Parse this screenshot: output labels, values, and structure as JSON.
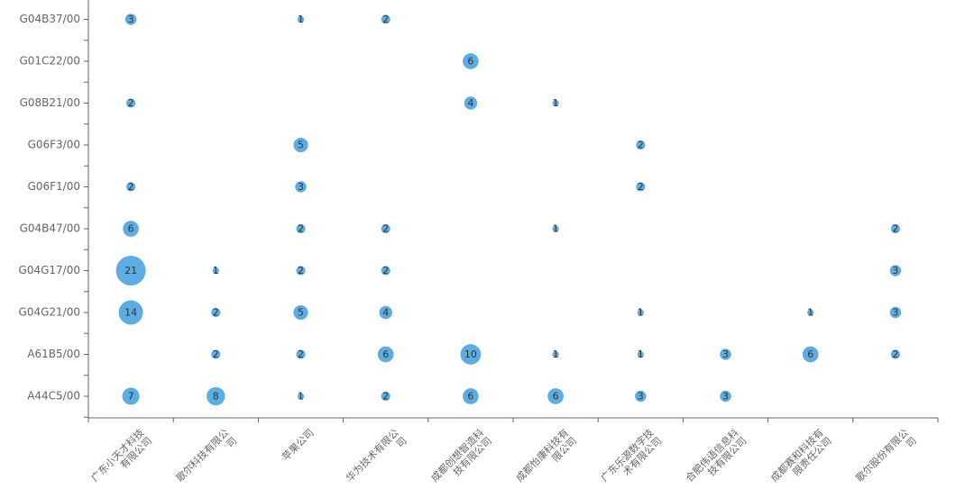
{
  "chart_data": {
    "type": "scatter",
    "title": "",
    "xlabel": "",
    "ylabel": "",
    "grid": false,
    "legend": "none",
    "x_categories": [
      "广东小天才科技有限公司",
      "歌尔科技有限公司",
      "苹果公司",
      "华为技术有限公司",
      "成都创想智造科技有限公司",
      "成都怡康科技有限公司",
      "广东乐源数字技术有限公司",
      "合肥伟语信息科技有限公司",
      "成都赛和科技有限责任公司",
      "歌尔股份有限公司"
    ],
    "x_tick_lines": [
      [
        "广东小天才科技",
        "有限公司"
      ],
      [
        "歌尔科技有限公",
        "司"
      ],
      [
        "苹果公司"
      ],
      [
        "华为技术有限公",
        "司"
      ],
      [
        "成都创想智造科",
        "技有限公司"
      ],
      [
        "成都怡康科技有",
        "限公司"
      ],
      [
        "广东乐源数字技",
        "术有限公司"
      ],
      [
        "合肥伟语信息科",
        "技有限公司"
      ],
      [
        "成都赛和科技有",
        "限责任公司"
      ],
      [
        "歌尔股份有限公",
        "司"
      ]
    ],
    "y_categories": [
      "A44C5/00",
      "A61B5/00",
      "G04G21/00",
      "G04G17/00",
      "G04B47/00",
      "G06F1/00",
      "G06F3/00",
      "G08B21/00",
      "G01C22/00",
      "G04B37/00"
    ],
    "points": [
      {
        "x": "广东小天才科技有限公司",
        "y": "G04B37/00",
        "value": 3
      },
      {
        "x": "苹果公司",
        "y": "G04B37/00",
        "value": 1
      },
      {
        "x": "华为技术有限公司",
        "y": "G04B37/00",
        "value": 2
      },
      {
        "x": "成都创想智造科技有限公司",
        "y": "G01C22/00",
        "value": 6
      },
      {
        "x": "广东小天才科技有限公司",
        "y": "G08B21/00",
        "value": 2
      },
      {
        "x": "成都创想智造科技有限公司",
        "y": "G08B21/00",
        "value": 4
      },
      {
        "x": "成都怡康科技有限公司",
        "y": "G08B21/00",
        "value": 1
      },
      {
        "x": "苹果公司",
        "y": "G06F3/00",
        "value": 5
      },
      {
        "x": "广东乐源数字技术有限公司",
        "y": "G06F3/00",
        "value": 2
      },
      {
        "x": "广东小天才科技有限公司",
        "y": "G06F1/00",
        "value": 2
      },
      {
        "x": "苹果公司",
        "y": "G06F1/00",
        "value": 3
      },
      {
        "x": "广东乐源数字技术有限公司",
        "y": "G06F1/00",
        "value": 2
      },
      {
        "x": "广东小天才科技有限公司",
        "y": "G04B47/00",
        "value": 6
      },
      {
        "x": "苹果公司",
        "y": "G04B47/00",
        "value": 2
      },
      {
        "x": "华为技术有限公司",
        "y": "G04B47/00",
        "value": 2
      },
      {
        "x": "成都怡康科技有限公司",
        "y": "G04B47/00",
        "value": 1
      },
      {
        "x": "歌尔股份有限公司",
        "y": "G04B47/00",
        "value": 2
      },
      {
        "x": "广东小天才科技有限公司",
        "y": "G04G17/00",
        "value": 21
      },
      {
        "x": "歌尔科技有限公司",
        "y": "G04G17/00",
        "value": 1
      },
      {
        "x": "苹果公司",
        "y": "G04G17/00",
        "value": 2
      },
      {
        "x": "华为技术有限公司",
        "y": "G04G17/00",
        "value": 2
      },
      {
        "x": "歌尔股份有限公司",
        "y": "G04G17/00",
        "value": 3
      },
      {
        "x": "广东小天才科技有限公司",
        "y": "G04G21/00",
        "value": 14
      },
      {
        "x": "歌尔科技有限公司",
        "y": "G04G21/00",
        "value": 2
      },
      {
        "x": "苹果公司",
        "y": "G04G21/00",
        "value": 5
      },
      {
        "x": "华为技术有限公司",
        "y": "G04G21/00",
        "value": 4
      },
      {
        "x": "广东乐源数字技术有限公司",
        "y": "G04G21/00",
        "value": 1
      },
      {
        "x": "成都赛和科技有限责任公司",
        "y": "G04G21/00",
        "value": 1
      },
      {
        "x": "歌尔股份有限公司",
        "y": "G04G21/00",
        "value": 3
      },
      {
        "x": "歌尔科技有限公司",
        "y": "A61B5/00",
        "value": 2
      },
      {
        "x": "苹果公司",
        "y": "A61B5/00",
        "value": 2
      },
      {
        "x": "华为技术有限公司",
        "y": "A61B5/00",
        "value": 6
      },
      {
        "x": "成都创想智造科技有限公司",
        "y": "A61B5/00",
        "value": 10
      },
      {
        "x": "成都怡康科技有限公司",
        "y": "A61B5/00",
        "value": 1
      },
      {
        "x": "广东乐源数字技术有限公司",
        "y": "A61B5/00",
        "value": 1
      },
      {
        "x": "合肥伟语信息科技有限公司",
        "y": "A61B5/00",
        "value": 3
      },
      {
        "x": "成都赛和科技有限责任公司",
        "y": "A61B5/00",
        "value": 6
      },
      {
        "x": "歌尔股份有限公司",
        "y": "A61B5/00",
        "value": 2
      },
      {
        "x": "广东小天才科技有限公司",
        "y": "A44C5/00",
        "value": 7
      },
      {
        "x": "歌尔科技有限公司",
        "y": "A44C5/00",
        "value": 8
      },
      {
        "x": "苹果公司",
        "y": "A44C5/00",
        "value": 1
      },
      {
        "x": "华为技术有限公司",
        "y": "A44C5/00",
        "value": 2
      },
      {
        "x": "成都创想智造科技有限公司",
        "y": "A44C5/00",
        "value": 6
      },
      {
        "x": "成都怡康科技有限公司",
        "y": "A44C5/00",
        "value": 6
      },
      {
        "x": "广东乐源数字技术有限公司",
        "y": "A44C5/00",
        "value": 3
      },
      {
        "x": "合肥伟语信息科技有限公司",
        "y": "A44C5/00",
        "value": 3
      }
    ],
    "colors": {
      "bubble": "#5dade2",
      "axis": "#666666",
      "tick_text": "#666666",
      "label_text": "#333333"
    }
  }
}
